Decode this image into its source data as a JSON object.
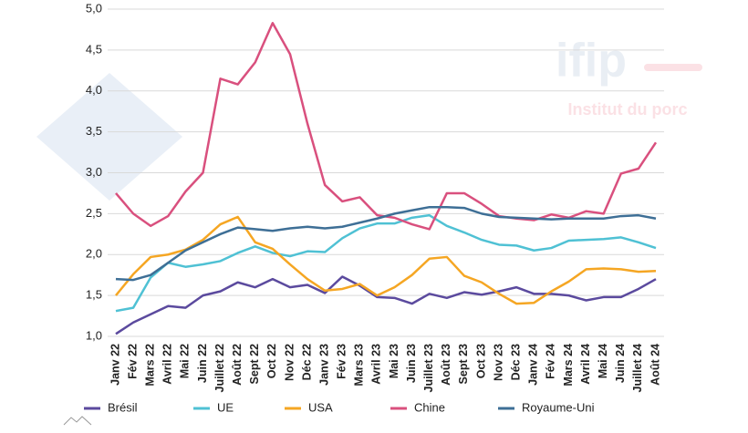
{
  "chart_data": {
    "type": "line",
    "watermark": {
      "title": "ifip",
      "subtitle": "Institut du porc"
    },
    "categories": [
      "Janv 22",
      "Fév 22",
      "Mars 22",
      "Avril 22",
      "Mai 22",
      "Juin 22",
      "Juillet 22",
      "Août 22",
      "Sept 22",
      "Oct 22",
      "Nov 22",
      "Déc 22",
      "Janv 23",
      "Fév 23",
      "Mars 23",
      "Avril 23",
      "Mai 23",
      "Juin 23",
      "Juillet 23",
      "Août 23",
      "Sept 23",
      "Oct 23",
      "Nov 23",
      "Déc 23",
      "Janv 24",
      "Fév 24",
      "Mars 24",
      "Avril 24",
      "Mai 24",
      "Juin 24",
      "Juillet 24",
      "Août 24"
    ],
    "series": [
      {
        "name": "Brésil",
        "color": "#5b4a9e",
        "values": [
          1.03,
          1.17,
          1.27,
          1.37,
          1.35,
          1.5,
          1.55,
          1.66,
          1.6,
          1.7,
          1.6,
          1.63,
          1.53,
          1.73,
          1.62,
          1.48,
          1.47,
          1.4,
          1.52,
          1.47,
          1.54,
          1.51,
          1.55,
          1.6,
          1.52,
          1.52,
          1.5,
          1.44,
          1.48,
          1.48,
          1.58,
          1.7
        ]
      },
      {
        "name": "UE",
        "color": "#4fc1d4",
        "values": [
          1.31,
          1.35,
          1.72,
          1.9,
          1.85,
          1.88,
          1.92,
          2.02,
          2.1,
          2.02,
          1.98,
          2.04,
          2.03,
          2.2,
          2.32,
          2.38,
          2.38,
          2.45,
          2.48,
          2.35,
          2.27,
          2.18,
          2.12,
          2.11,
          2.05,
          2.08,
          2.17,
          2.18,
          2.19,
          2.21,
          2.15,
          2.08
        ]
      },
      {
        "name": "USA",
        "color": "#f5a623",
        "values": [
          1.5,
          1.76,
          1.97,
          2.0,
          2.06,
          2.18,
          2.37,
          2.46,
          2.15,
          2.07,
          1.88,
          1.7,
          1.56,
          1.58,
          1.64,
          1.5,
          1.6,
          1.75,
          1.95,
          1.97,
          1.74,
          1.66,
          1.52,
          1.4,
          1.41,
          1.55,
          1.67,
          1.82,
          1.83,
          1.82,
          1.79,
          1.8
        ]
      },
      {
        "name": "Chine",
        "color": "#d9507e",
        "values": [
          2.75,
          2.5,
          2.35,
          2.47,
          2.77,
          3.0,
          4.15,
          4.08,
          4.35,
          4.83,
          4.45,
          3.6,
          2.85,
          2.65,
          2.7,
          2.48,
          2.45,
          2.37,
          2.31,
          2.75,
          2.75,
          2.62,
          2.47,
          2.44,
          2.42,
          2.49,
          2.45,
          2.53,
          2.5,
          2.99,
          3.05,
          3.37
        ]
      },
      {
        "name": "Royaume-Uni",
        "color": "#3e6f96",
        "values": [
          1.7,
          1.69,
          1.75,
          1.9,
          2.05,
          2.15,
          2.25,
          2.33,
          2.31,
          2.29,
          2.32,
          2.34,
          2.32,
          2.34,
          2.39,
          2.44,
          2.5,
          2.54,
          2.58,
          2.58,
          2.57,
          2.5,
          2.46,
          2.45,
          2.44,
          2.43,
          2.44,
          2.44,
          2.44,
          2.47,
          2.48,
          2.44
        ]
      }
    ],
    "ylim": [
      1,
      5
    ],
    "yticks": [
      {
        "value": 1,
        "label": "1,0"
      },
      {
        "value": 1.5,
        "label": "1,5"
      },
      {
        "value": 2,
        "label": "2,0"
      },
      {
        "value": 2.5,
        "label": "2,5"
      },
      {
        "value": 3,
        "label": "3,0"
      },
      {
        "value": 3.5,
        "label": "3,5"
      },
      {
        "value": 4,
        "label": "4,0"
      },
      {
        "value": 4.5,
        "label": "4,5"
      },
      {
        "value": 5,
        "label": "5,0"
      }
    ],
    "grid": true,
    "legend": "bottom"
  }
}
